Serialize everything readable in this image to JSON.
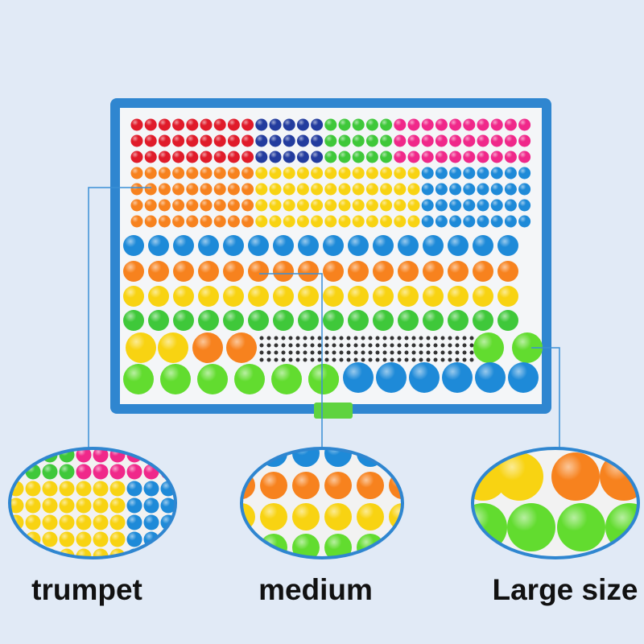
{
  "callouts": [
    {
      "label": "trumpet"
    },
    {
      "label": "medium"
    },
    {
      "label": "Large size"
    }
  ]
}
